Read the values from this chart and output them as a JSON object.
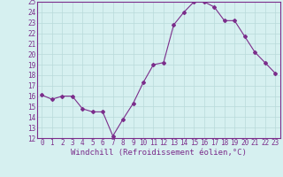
{
  "x": [
    0,
    1,
    2,
    3,
    4,
    5,
    6,
    7,
    8,
    9,
    10,
    11,
    12,
    13,
    14,
    15,
    16,
    17,
    18,
    19,
    20,
    21,
    22,
    23
  ],
  "y": [
    16.1,
    15.7,
    16.0,
    16.0,
    14.8,
    14.5,
    14.5,
    12.2,
    13.8,
    15.3,
    17.3,
    19.0,
    19.2,
    22.8,
    24.0,
    25.0,
    25.0,
    24.5,
    23.2,
    23.2,
    21.7,
    20.2,
    19.2,
    18.2
  ],
  "line_color": "#7b2d8b",
  "marker": "D",
  "marker_size": 2.0,
  "bg_color": "#d6f0f0",
  "grid_color": "#b8dada",
  "xlabel": "Windchill (Refroidissement éolien,°C)",
  "ylim": [
    12,
    25
  ],
  "xlim_min": -0.5,
  "xlim_max": 23.5,
  "yticks": [
    12,
    13,
    14,
    15,
    16,
    17,
    18,
    19,
    20,
    21,
    22,
    23,
    24,
    25
  ],
  "xticks": [
    0,
    1,
    2,
    3,
    4,
    5,
    6,
    7,
    8,
    9,
    10,
    11,
    12,
    13,
    14,
    15,
    16,
    17,
    18,
    19,
    20,
    21,
    22,
    23
  ],
  "tick_fontsize": 5.5,
  "xlabel_fontsize": 6.5,
  "label_color": "#7b2d8b"
}
